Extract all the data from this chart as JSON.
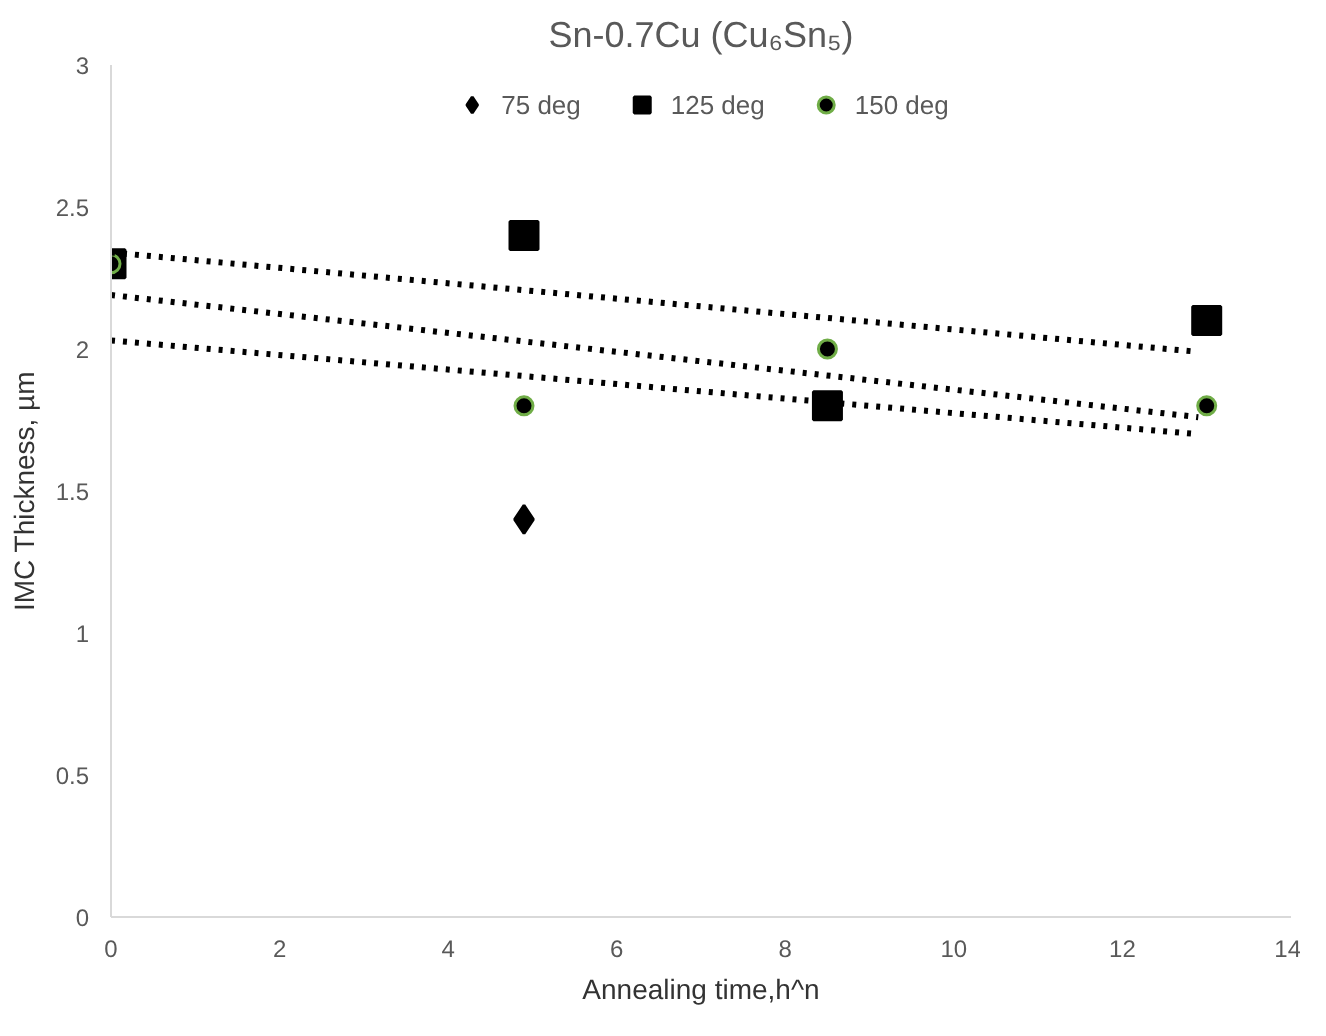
{
  "chart_data": {
    "type": "scatter",
    "title": "Sn-0.7Cu (Cu₆Sn₅)",
    "xlabel": "Annealing time,h^n",
    "ylabel": "IMC Thickness, µm",
    "xlim": [
      0,
      14
    ],
    "xticks": [
      0,
      2,
      4,
      6,
      8,
      10,
      12,
      14
    ],
    "ylim": [
      0,
      3
    ],
    "yticks": [
      0,
      0.5,
      1,
      1.5,
      2,
      2.5,
      3
    ],
    "grid": false,
    "legend": "top",
    "series": [
      {
        "name": "75 deg",
        "color": "#000000",
        "marker": "diamond",
        "x": [
          4.9
        ],
        "values": [
          1.4
        ]
      },
      {
        "name": "125 deg",
        "color": "#000000",
        "marker": "square",
        "x": [
          0,
          4.9,
          8.5,
          13
        ],
        "values": [
          2.3,
          2.4,
          1.8,
          2.1
        ]
      },
      {
        "name": "150 deg",
        "color": "#000000",
        "marker": "circle",
        "x": [
          0,
          4.9,
          8.5,
          13
        ],
        "values": [
          2.3,
          1.8,
          2.0,
          1.8
        ]
      },
      {
        "type": "line",
        "color": "#000000",
        "line_style": "dotted",
        "marker": "none",
        "x": [
          0,
          12.9
        ],
        "values": [
          2.34,
          1.99
        ]
      },
      {
        "type": "line",
        "color": "#000000",
        "line_style": "dotted",
        "marker": "none",
        "x": [
          0,
          12.9
        ],
        "values": [
          2.19,
          1.76
        ]
      },
      {
        "type": "line",
        "color": "#000000",
        "line_style": "dotted",
        "marker": "none",
        "x": [
          0,
          12.9
        ],
        "values": [
          2.03,
          1.7
        ]
      }
    ]
  }
}
